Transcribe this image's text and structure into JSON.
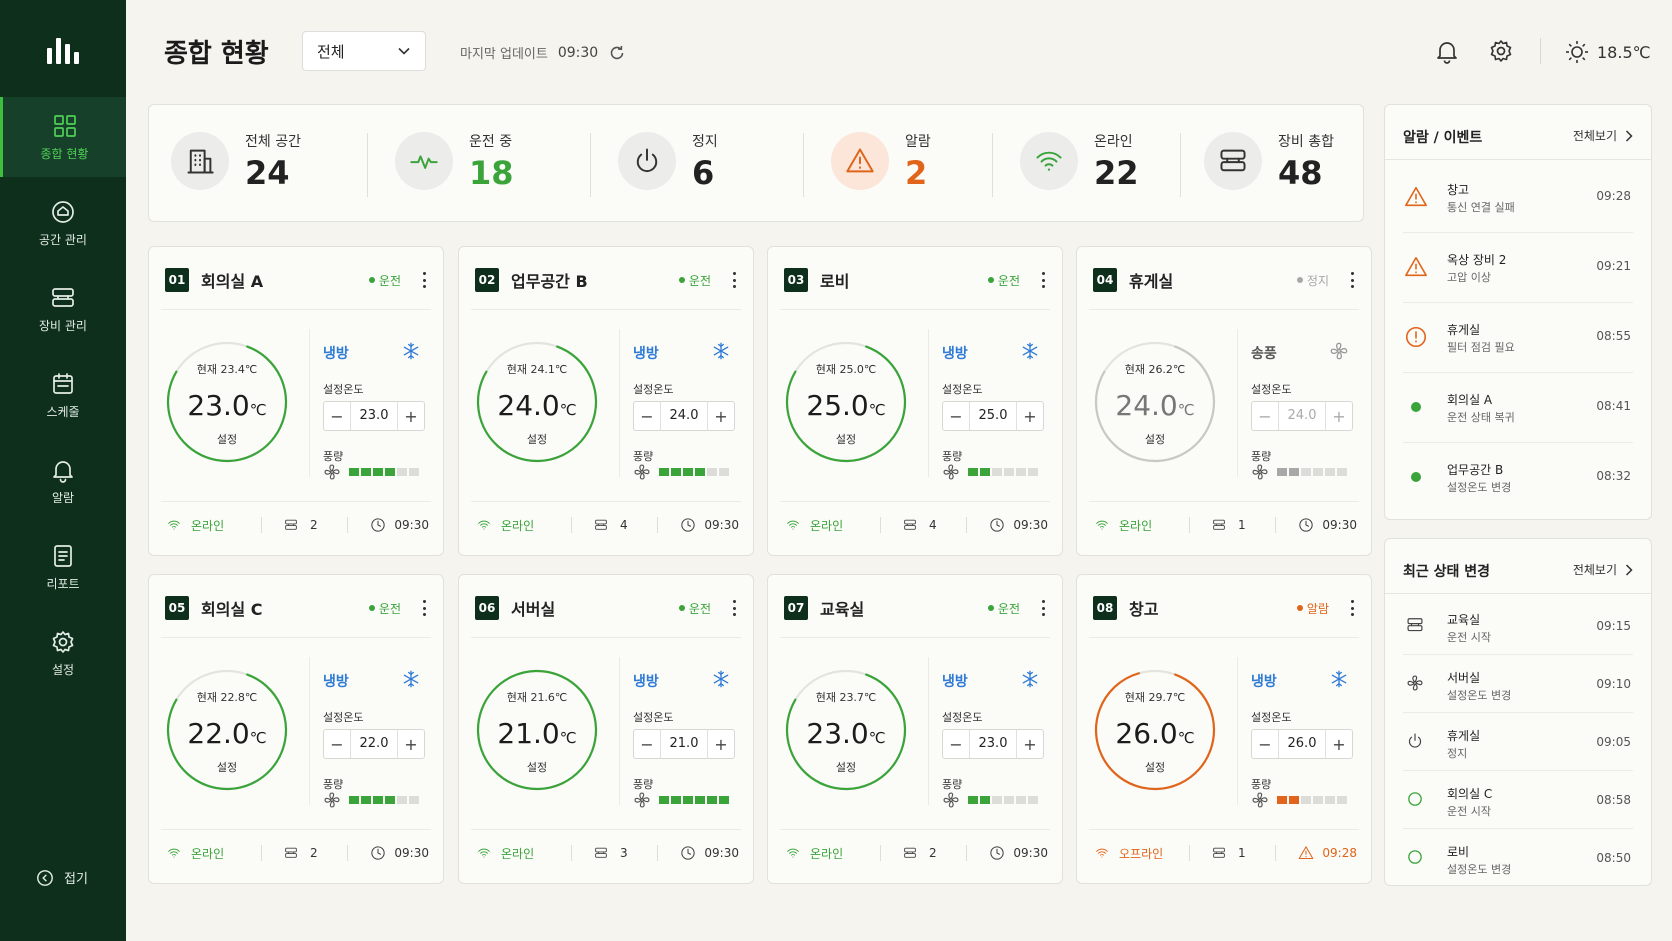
{
  "sidebar": {
    "items": [
      {
        "label": "종합 현황",
        "icon": "grid-icon",
        "active": true
      },
      {
        "label": "공간 관리",
        "icon": "space-icon",
        "active": false
      },
      {
        "label": "장비 관리",
        "icon": "device-icon",
        "active": false
      },
      {
        "label": "스케줄",
        "icon": "calendar-icon",
        "active": false
      },
      {
        "label": "알람",
        "icon": "bell-icon",
        "active": false
      },
      {
        "label": "리포트",
        "icon": "report-icon",
        "active": false
      },
      {
        "label": "설정",
        "icon": "gear-icon",
        "active": false
      }
    ],
    "collapse_label": "접기"
  },
  "header": {
    "title": "종합 현황",
    "filter_value": "전체",
    "last_update_label": "마지막 업데이트",
    "last_update_time": "09:30",
    "temperature": "18.5℃"
  },
  "summary": [
    {
      "label": "전체 공간",
      "value": "24",
      "icon": "building-icon",
      "color": "#222222"
    },
    {
      "label": "운전 중",
      "value": "18",
      "icon": "pulse-icon",
      "color": "#3aa43a"
    },
    {
      "label": "정지",
      "value": "6",
      "icon": "power-icon",
      "color": "#222222"
    },
    {
      "label": "알람",
      "value": "2",
      "icon": "warning-icon",
      "color": "#e0651a"
    },
    {
      "label": "온라인",
      "value": "22",
      "icon": "wifi-icon",
      "color": "#222222"
    },
    {
      "label": "장비 총합",
      "value": "48",
      "icon": "device-icon",
      "color": "#222222"
    }
  ],
  "zones": [
    {
      "num": "01",
      "name": "회의실 A",
      "status": "운전",
      "status_kind": "run",
      "current": "현재 23.4℃",
      "set": "23.0",
      "unit": "℃",
      "set_label": "설정",
      "mode": "냉방",
      "mode_kind": "cool",
      "setpoint_label": "설정온도",
      "fan_label": "풍량",
      "fan_level": 4,
      "fan_max": 6,
      "online": "온라인",
      "online_kind": "online",
      "devices": "2",
      "time": "09:30",
      "time_alarm": false,
      "ring": 0.78
    },
    {
      "num": "02",
      "name": "업무공간 B",
      "status": "운전",
      "status_kind": "run",
      "current": "현재 24.1℃",
      "set": "24.0",
      "unit": "℃",
      "set_label": "설정",
      "mode": "냉방",
      "mode_kind": "cool",
      "setpoint_label": "설정온도",
      "fan_label": "풍량",
      "fan_level": 4,
      "fan_max": 6,
      "online": "온라인",
      "online_kind": "online",
      "devices": "4",
      "time": "09:30",
      "time_alarm": false,
      "ring": 0.78
    },
    {
      "num": "03",
      "name": "로비",
      "status": "운전",
      "status_kind": "run",
      "current": "현재 25.0℃",
      "set": "25.0",
      "unit": "℃",
      "set_label": "설정",
      "mode": "냉방",
      "mode_kind": "cool",
      "setpoint_label": "설정온도",
      "fan_label": "풍량",
      "fan_level": 2,
      "fan_max": 6,
      "online": "온라인",
      "online_kind": "online",
      "devices": "4",
      "time": "09:30",
      "time_alarm": false,
      "ring": 0.78
    },
    {
      "num": "04",
      "name": "휴게실",
      "status": "정지",
      "status_kind": "stop",
      "current": "현재 26.2℃",
      "set": "24.0",
      "unit": "℃",
      "set_label": "설정",
      "mode": "송풍",
      "mode_kind": "fan",
      "setpoint_label": "설정온도",
      "fan_label": "풍량",
      "fan_level": 2,
      "fan_max": 6,
      "online": "온라인",
      "online_kind": "online",
      "devices": "1",
      "time": "09:30",
      "time_alarm": false,
      "ring": 0.78
    },
    {
      "num": "05",
      "name": "회의실 C",
      "status": "운전",
      "status_kind": "run",
      "current": "현재 22.8℃",
      "set": "22.0",
      "unit": "℃",
      "set_label": "설정",
      "mode": "냉방",
      "mode_kind": "cool",
      "setpoint_label": "설정온도",
      "fan_label": "풍량",
      "fan_level": 4,
      "fan_max": 6,
      "online": "온라인",
      "online_kind": "online",
      "devices": "2",
      "time": "09:30",
      "time_alarm": false,
      "ring": 0.78
    },
    {
      "num": "06",
      "name": "서버실",
      "status": "운전",
      "status_kind": "run",
      "current": "현재 21.6℃",
      "set": "21.0",
      "unit": "℃",
      "set_label": "설정",
      "mode": "냉방",
      "mode_kind": "cool",
      "setpoint_label": "설정온도",
      "fan_label": "풍량",
      "fan_level": 6,
      "fan_max": 6,
      "online": "온라인",
      "online_kind": "online",
      "devices": "3",
      "time": "09:30",
      "time_alarm": false,
      "ring": 1.0
    },
    {
      "num": "07",
      "name": "교육실",
      "status": "운전",
      "status_kind": "run",
      "current": "현재 23.7℃",
      "set": "23.0",
      "unit": "℃",
      "set_label": "설정",
      "mode": "냉방",
      "mode_kind": "cool",
      "setpoint_label": "설정온도",
      "fan_label": "풍량",
      "fan_level": 2,
      "fan_max": 6,
      "online": "온라인",
      "online_kind": "online",
      "devices": "2",
      "time": "09:30",
      "time_alarm": false,
      "ring": 0.78
    },
    {
      "num": "08",
      "name": "창고",
      "status": "알람",
      "status_kind": "alarm",
      "current": "현재 29.7℃",
      "set": "26.0",
      "unit": "℃",
      "set_label": "설정",
      "mode": "냉방",
      "mode_kind": "cool",
      "setpoint_label": "설정온도",
      "fan_label": "풍량",
      "fan_level": 2,
      "fan_max": 6,
      "online": "오프라인",
      "online_kind": "offline",
      "devices": "1",
      "time": "09:28",
      "time_alarm": true,
      "ring": 0.9
    }
  ],
  "alarms": {
    "title": "알람 / 이벤트",
    "view_all": "전체보기",
    "items": [
      {
        "kind": "alarm",
        "title": "창고",
        "desc": "통신 연결 실패",
        "time": "09:28"
      },
      {
        "kind": "alarm",
        "title": "옥상 장비 2",
        "desc": "고압 이상",
        "time": "09:21"
      },
      {
        "kind": "warn",
        "title": "휴게실",
        "desc": "필터 점검 필요",
        "time": "08:55"
      },
      {
        "kind": "ok",
        "title": "회의실 A",
        "desc": "운전 상태 복귀",
        "time": "08:41"
      },
      {
        "kind": "ok",
        "title": "업무공간 B",
        "desc": "설정온도 변경",
        "time": "08:32"
      }
    ]
  },
  "changes": {
    "title": "최근 상태 변경",
    "view_all": "전체보기",
    "items": [
      {
        "kind": "device",
        "title": "교육실",
        "desc": "운전 시작",
        "time": "09:15"
      },
      {
        "kind": "fan",
        "title": "서버실",
        "desc": "설정온도 변경",
        "time": "09:10"
      },
      {
        "kind": "power",
        "title": "휴게실",
        "desc": "정지",
        "time": "09:05"
      },
      {
        "kind": "ring",
        "title": "회의실 C",
        "desc": "운전 시작",
        "time": "08:58"
      },
      {
        "kind": "ring",
        "title": "로비",
        "desc": "설정온도 변경",
        "time": "08:50"
      }
    ]
  },
  "colors": {
    "green": "#3aa43a",
    "orange": "#e0651a",
    "gray": "#a8a8a8",
    "blue": "#2f7bd6",
    "sidebar": "#0d2f1c"
  }
}
